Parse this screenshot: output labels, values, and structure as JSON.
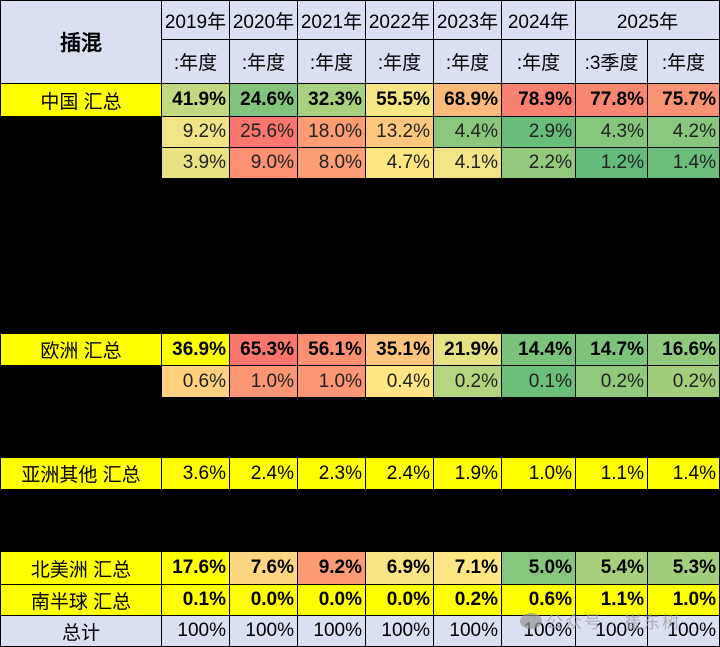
{
  "table": {
    "corner_label": "插混",
    "year_headers": [
      "2019年",
      "2020年",
      "2021年",
      "2022年",
      "2023年",
      "2024年",
      "2025年"
    ],
    "period_headers": [
      ":年度",
      ":年度",
      ":年度",
      ":年度",
      ":年度",
      ":年度",
      ":3季度",
      ":年度"
    ],
    "columns": [
      "2019年:年度",
      "2020年:年度",
      "2021年:年度",
      "2022年:年度",
      "2023年:年度",
      "2024年:年度",
      "2025年:3季度",
      "2025年:年度"
    ],
    "rows": [
      {
        "label": "中国 汇总",
        "values": [
          "41.9%",
          "24.6%",
          "32.3%",
          "55.5%",
          "68.9%",
          "78.9%",
          "77.8%",
          "75.7%"
        ],
        "colors": [
          "#c2d97f",
          "#82c47c",
          "#a8d07e",
          "#f4e685",
          "#fbb97a",
          "#f8816f",
          "#f88770",
          "#f99173"
        ]
      },
      {
        "label": "",
        "values": [
          "9.2%",
          "25.6%",
          "18.0%",
          "13.2%",
          "4.4%",
          "2.9%",
          "4.3%",
          "4.2%"
        ],
        "colors": [
          "#f0e486",
          "#f8766d",
          "#fa9d74",
          "#fdc87e",
          "#8ac77d",
          "#69bd7b",
          "#86c67c",
          "#88c77d"
        ]
      },
      {
        "label": "",
        "values": [
          "3.9%",
          "9.0%",
          "8.0%",
          "4.7%",
          "4.1%",
          "2.2%",
          "1.2%",
          "1.4%"
        ],
        "colors": [
          "#e8e283",
          "#fa8f72",
          "#fba074",
          "#fee683",
          "#f0e486",
          "#93c97d",
          "#63bb7b",
          "#6dbe7b"
        ]
      },
      {
        "label": "欧洲 汇总",
        "values": [
          "36.9%",
          "65.3%",
          "56.1%",
          "35.1%",
          "21.9%",
          "14.4%",
          "14.7%",
          "16.6%"
        ],
        "colors": [
          "#ffff00",
          "#f8766d",
          "#fa8f71",
          "#fdc47d",
          "#e4e283",
          "#7bc27c",
          "#7ec37c",
          "#90c97d"
        ]
      },
      {
        "label": "",
        "values": [
          "0.6%",
          "1.0%",
          "1.0%",
          "0.4%",
          "0.2%",
          "0.1%",
          "0.2%",
          "0.2%"
        ],
        "colors": [
          "#fed080",
          "#fa9674",
          "#fa9674",
          "#ffe583",
          "#b5d47f",
          "#6cbe7b",
          "#91c97d",
          "#a3ce7e"
        ]
      },
      {
        "label": "亚洲其他 汇总",
        "values": [
          "3.6%",
          "2.4%",
          "2.3%",
          "2.4%",
          "1.9%",
          "1.0%",
          "1.1%",
          "1.4%"
        ],
        "colors": [
          "#ffff00",
          "#ffff00",
          "#ffff00",
          "#ffff00",
          "#ffff00",
          "#ffff00",
          "#ffff00",
          "#ffff00"
        ]
      },
      {
        "label": "北美洲 汇总",
        "values": [
          "17.6%",
          "7.6%",
          "9.2%",
          "6.9%",
          "7.1%",
          "5.0%",
          "5.4%",
          "5.3%"
        ],
        "colors": [
          "#ffff00",
          "#fed580",
          "#fa9b73",
          "#f6e585",
          "#fee683",
          "#86c67c",
          "#a7cf7e",
          "#a2ce7e"
        ]
      },
      {
        "label": "南半球 汇总",
        "values": [
          "0.1%",
          "0.0%",
          "0.0%",
          "0.0%",
          "0.2%",
          "0.6%",
          "1.1%",
          "1.0%"
        ],
        "colors": [
          "#ffff00",
          "#ffff00",
          "#ffff00",
          "#ffff00",
          "#ffff00",
          "#ffff00",
          "#ffff00",
          "#ffff00"
        ]
      },
      {
        "label": "总计",
        "values": [
          "100%",
          "100%",
          "100%",
          "100%",
          "100%",
          "100%",
          "100%",
          "100%"
        ],
        "colors": [
          "#dae0f2",
          "#dae0f2",
          "#dae0f2",
          "#dae0f2",
          "#dae0f2",
          "#dae0f2",
          "#dae0f2",
          "#dae0f2"
        ]
      }
    ]
  },
  "watermark": "公众号 · 崔东树"
}
